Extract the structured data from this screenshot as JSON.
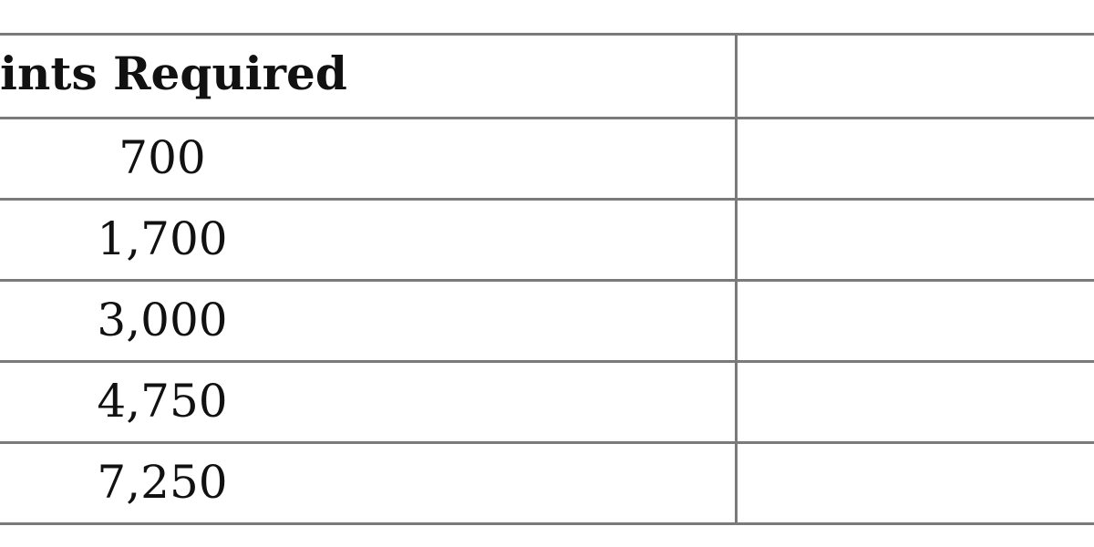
{
  "table": {
    "header": "ints Required",
    "rows": [
      "700",
      "1,700",
      "3,000",
      "4,750",
      "7,250"
    ]
  }
}
